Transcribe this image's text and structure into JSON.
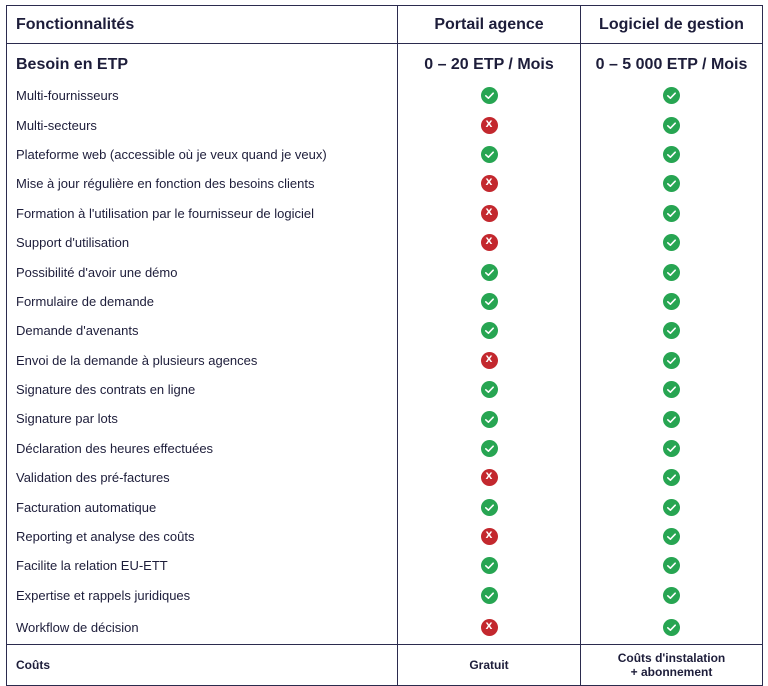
{
  "header": {
    "col1": "Fonctionnalités",
    "col2": "Portail agence",
    "col3": "Logiciel de gestion"
  },
  "etp": {
    "label": "Besoin en ETP",
    "portail": "0 – 20 ETP / Mois",
    "logiciel": "0 – 5 000 ETP / Mois"
  },
  "features": [
    {
      "label": "Multi-fournisseurs",
      "portail": "check",
      "logiciel": "check"
    },
    {
      "label": "Multi-secteurs",
      "portail": "cross",
      "logiciel": "check"
    },
    {
      "label": "Plateforme web (accessible où je veux quand je veux)",
      "portail": "check",
      "logiciel": "check"
    },
    {
      "label": "Mise à jour régulière en fonction des besoins clients",
      "portail": "cross",
      "logiciel": "check"
    },
    {
      "label": "Formation à l'utilisation par le fournisseur de logiciel",
      "portail": "cross",
      "logiciel": "check"
    },
    {
      "label": "Support d'utilisation",
      "portail": "cross",
      "logiciel": "check"
    },
    {
      "label": "Possibilité d'avoir une démo",
      "portail": "check",
      "logiciel": "check"
    },
    {
      "label": "Formulaire de demande",
      "portail": "check",
      "logiciel": "check"
    },
    {
      "label": "Demande d'avenants",
      "portail": "check",
      "logiciel": "check"
    },
    {
      "label": "Envoi de la demande à plusieurs agences",
      "portail": "cross",
      "logiciel": "check"
    },
    {
      "label": "Signature des contrats en ligne",
      "portail": "check",
      "logiciel": "check"
    },
    {
      "label": "Signature par lots",
      "portail": "check",
      "logiciel": "check"
    },
    {
      "label": "Déclaration des heures effectuées",
      "portail": "check",
      "logiciel": "check"
    },
    {
      "label": "Validation des pré-factures",
      "portail": "cross",
      "logiciel": "check"
    },
    {
      "label": "Facturation automatique",
      "portail": "check",
      "logiciel": "check"
    },
    {
      "label": "Reporting et analyse des coûts",
      "portail": "cross",
      "logiciel": "check"
    },
    {
      "label": "Facilite la relation EU-ETT",
      "portail": "check",
      "logiciel": "check"
    },
    {
      "label": "Expertise et rappels juridiques",
      "portail": "check",
      "logiciel": "check"
    },
    {
      "label": "Workflow de décision",
      "portail": "cross",
      "logiciel": "check"
    }
  ],
  "couts": {
    "label": "Coûts",
    "portail": "Gratuit",
    "logiciel_line1": "Coûts d'instalation",
    "logiciel_line2": "+ abonnement"
  },
  "icons": {
    "check": "check-circle-icon",
    "cross": "cross-circle-icon",
    "check_color": "#27a552",
    "cross_color": "#c3282e",
    "cross_glyph": "X"
  }
}
